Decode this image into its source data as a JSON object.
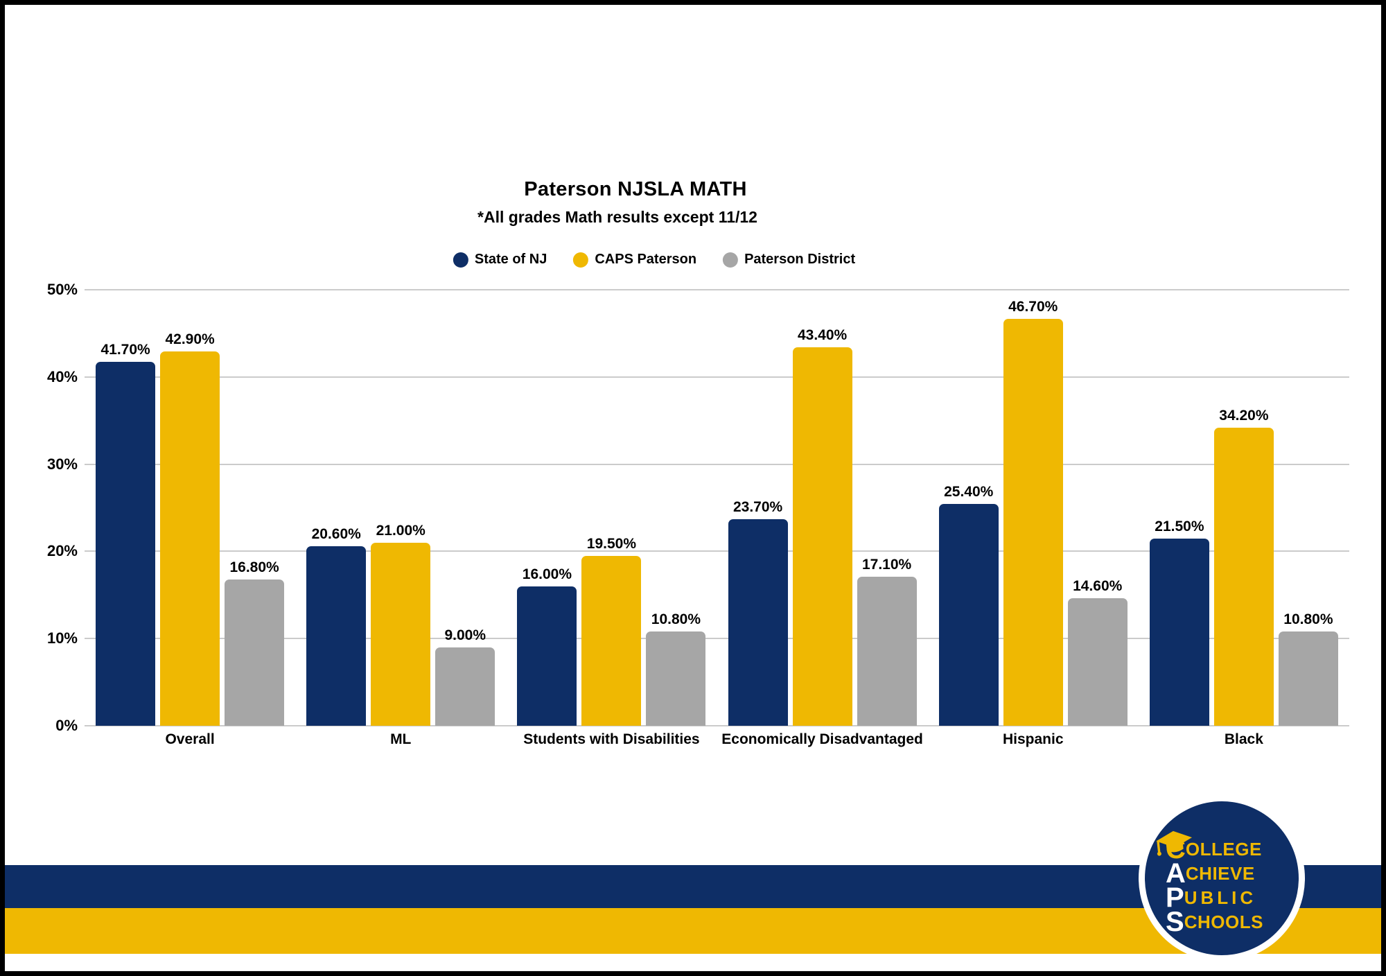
{
  "page": {
    "background": "#ffffff",
    "border_color": "#000000"
  },
  "colors": {
    "navy": "#0e2e66",
    "gold": "#efb802",
    "gray": "#a6a6a6",
    "gridline": "#cbcbcb",
    "text": "#000000",
    "logo_white": "#ffffff"
  },
  "chart_data": {
    "type": "bar",
    "title": "Paterson NJSLA MATH",
    "subtitle": "*All grades Math results except 11/12",
    "categories": [
      "Overall",
      "ML",
      "Students with Disabilities",
      "Economically Disadvantaged",
      "Hispanic",
      "Black"
    ],
    "series": [
      {
        "name": "State of NJ",
        "color": "#0e2e66",
        "values": [
          41.7,
          20.6,
          16.0,
          23.7,
          25.4,
          21.5
        ],
        "value_labels": [
          "41.70%",
          "20.60%",
          "16.00%",
          "23.70%",
          "25.40%",
          "21.50%"
        ]
      },
      {
        "name": "CAPS Paterson",
        "color": "#efb802",
        "values": [
          42.9,
          21.0,
          19.5,
          43.4,
          46.7,
          34.2
        ],
        "value_labels": [
          "42.90%",
          "21.00%",
          "19.50%",
          "43.40%",
          "46.70%",
          "34.20%"
        ]
      },
      {
        "name": "Paterson District",
        "color": "#a6a6a6",
        "values": [
          16.8,
          9.0,
          10.8,
          17.1,
          14.6,
          10.8
        ],
        "value_labels": [
          "16.80%",
          "9.00%",
          "10.80%",
          "17.10%",
          "14.60%",
          "10.80%"
        ]
      }
    ],
    "y_axis": {
      "min": 0,
      "max": 50,
      "ticks": [
        "0%",
        "10%",
        "20%",
        "30%",
        "40%",
        "50%"
      ],
      "grid": true
    },
    "legend_position": "top",
    "xlabel": "",
    "ylabel": ""
  },
  "footer": {
    "stripes": [
      {
        "name": "navy-stripe",
        "color": "#0e2e66"
      },
      {
        "name": "gold-stripe",
        "color": "#efb802"
      }
    ],
    "logo": {
      "background": "#0e2e66",
      "ring": "#ffffff",
      "icon": "graduation-cap-icon",
      "lines": [
        {
          "initial": "C",
          "rest": "OLLEGE",
          "initial_color": "#efb802",
          "rest_color": "#efb802"
        },
        {
          "initial": "A",
          "rest": "CHIEVE",
          "initial_color": "#ffffff",
          "rest_color": "#efb802"
        },
        {
          "initial": "P",
          "rest": "UBLIC",
          "initial_color": "#ffffff",
          "rest_color": "#efb802"
        },
        {
          "initial": "S",
          "rest": "CHOOLS",
          "initial_color": "#ffffff",
          "rest_color": "#efb802"
        }
      ]
    }
  }
}
